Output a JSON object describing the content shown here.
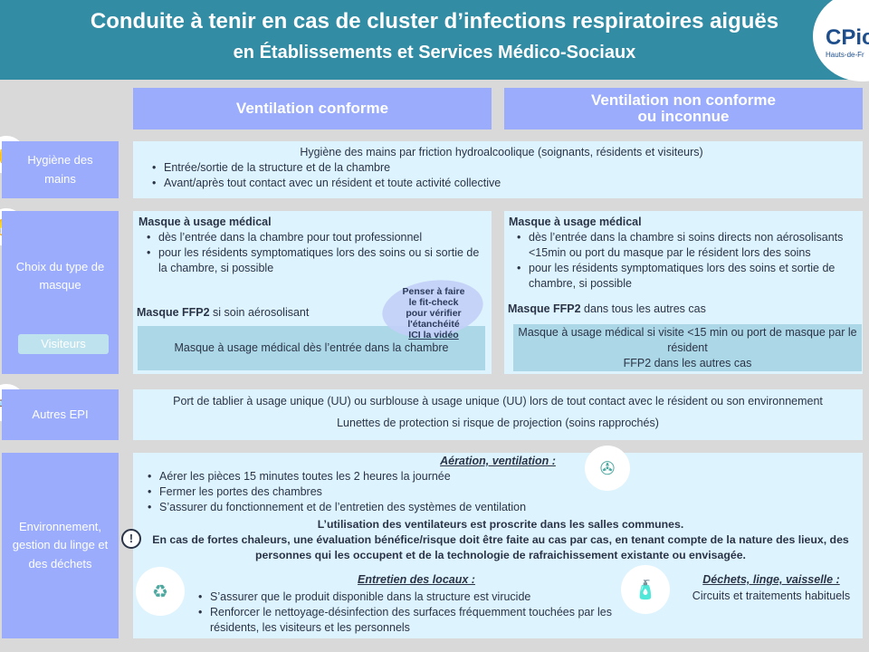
{
  "header": {
    "title_line1": "Conduite à tenir en cas de cluster d’infections respiratoires aiguës",
    "title_line2": "en  Établissements et Services Médico-Sociaux",
    "logo_text": "CPias",
    "logo_sub": "Hauts-de-France"
  },
  "columns": {
    "left": "Ventilation conforme",
    "right_line1": "Ventilation non conforme",
    "right_line2": "ou inconnue"
  },
  "hygiene": {
    "label": "Hygiène des mains",
    "intro": "Hygiène des mains par friction hydroalcoolique (soignants, résidents et visiteurs)",
    "items": [
      "Entrée/sortie de la structure et de la chambre",
      "Avant/après tout contact avec un résident et toute activité collective"
    ]
  },
  "masque": {
    "label": "Choix du type de masque",
    "visitors_label": "Visiteurs",
    "left": {
      "heading": "Masque à usage médical",
      "items": [
        "dès l’entrée dans la chambre pour tout professionnel",
        "pour les résidents symptomatiques lors des soins ou si sortie de la chambre, si possible"
      ],
      "ffp2_bold": "Masque FFP2",
      "ffp2_rest": " si soin aérosolisant",
      "visitors": "Masque à usage médical dès l’entrée dans la chambre"
    },
    "right": {
      "heading": "Masque à usage médical",
      "items": [
        "dès l’entrée dans la chambre si soins directs non aérosolisants <15min ou port du masque par le résident lors des soins",
        "pour les résidents symptomatiques lors des soins et sortie de chambre, si possible"
      ],
      "ffp2_bold": "Masque FFP2",
      "ffp2_rest": " dans tous les autres cas",
      "visitors_line1": "Masque à usage médical si visite <15 min ou port de masque par le résident",
      "visitors_line2": "FFP2 dans les autres cas"
    },
    "fitcheck": {
      "line1": "Penser à faire",
      "line2": "le fit-check",
      "line3": "pour vérifier l'étanchéité",
      "link": "ICI la vidéo"
    }
  },
  "epi": {
    "label": "Autres EPI",
    "line1": "Port de tablier à usage unique (UU) ou surblouse à usage unique (UU) lors de tout contact avec le résident ou son environnement",
    "line2": "Lunettes de protection si risque de projection (soins rapprochés)"
  },
  "env": {
    "label": "Environnement, gestion du linge et des déchets",
    "aeration": {
      "title": "Aération, ventilation :",
      "items": [
        "Aérer les pièces 15 minutes toutes les 2 heures la journée",
        "Fermer les portes des chambres",
        "S’assurer du fonctionnement et de l’entretien des systèmes de ventilation"
      ]
    },
    "warning": {
      "line1": "L’utilisation des ventilateurs est proscrite dans les salles communes.",
      "line2": "En cas de fortes chaleurs, une évaluation bénéfice/risque doit être faite au cas par cas, en tenant compte de la nature des lieux, des personnes qui les occupent et de la technologie de rafraichissement existante ou envisagée."
    },
    "entretien": {
      "title": "Entretien des locaux :",
      "items": [
        "S’assurer que le produit disponible dans la structure est virucide",
        "Renforcer le nettoyage-désinfection des surfaces fréquemment touchées par les résidents, les visiteurs et les personnels"
      ]
    },
    "dechets": {
      "title": "Déchets, linge, vaisselle :",
      "text": "Circuits et traitements habituels"
    }
  },
  "colors": {
    "header": "#318ca4",
    "label": "#9aacfb",
    "content": "#ddf3fd",
    "background": "#d9d9d9"
  }
}
